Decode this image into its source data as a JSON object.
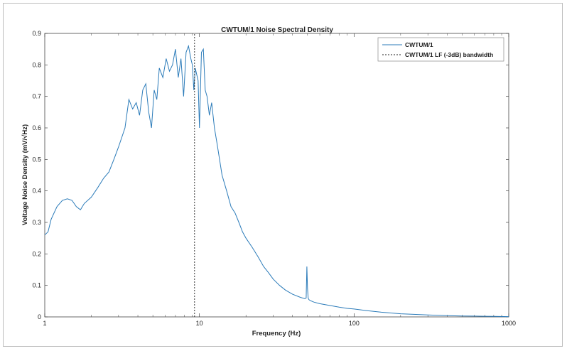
{
  "chart_data": {
    "type": "line",
    "title": "CWTUM/1 Noise Spectral Density",
    "xlabel": "Frequency (Hz)",
    "ylabel": "Voltage Noise Density (mV/√Hz)",
    "xscale": "log",
    "xlim": [
      1,
      1000
    ],
    "ylim": [
      0,
      0.9
    ],
    "xticks": [
      1,
      10,
      100,
      1000
    ],
    "xtick_labels": [
      "1",
      "10",
      "100",
      "1000"
    ],
    "yticks": [
      0,
      0.1,
      0.2,
      0.3,
      0.4,
      0.5,
      0.6,
      0.7,
      0.8,
      0.9
    ],
    "ytick_labels": [
      "0",
      "0.1",
      "0.2",
      "0.3",
      "0.4",
      "0.5",
      "0.6",
      "0.7",
      "0.8",
      "0.9"
    ],
    "grid": false,
    "legend_position": "top-right",
    "series": [
      {
        "name": "CWTUM/1",
        "style": "solid",
        "color": "#2b7bb9",
        "x": [
          1,
          1.05,
          1.1,
          1.2,
          1.3,
          1.4,
          1.5,
          1.6,
          1.7,
          1.8,
          2.0,
          2.2,
          2.4,
          2.6,
          2.8,
          3.0,
          3.3,
          3.5,
          3.7,
          3.9,
          4.1,
          4.3,
          4.5,
          4.7,
          4.9,
          5.1,
          5.3,
          5.5,
          5.8,
          6.1,
          6.4,
          6.7,
          7.0,
          7.3,
          7.6,
          7.9,
          8.2,
          8.5,
          8.8,
          9.0,
          9.2,
          9.4,
          9.6,
          9.8,
          10.0,
          10.3,
          10.6,
          10.9,
          11.2,
          11.6,
          12.0,
          12.5,
          13.0,
          13.5,
          14.0,
          15.0,
          16.0,
          17.0,
          18.0,
          19.0,
          20.0,
          22.0,
          24.0,
          26.0,
          28.0,
          30.0,
          33.0,
          36.0,
          40.0,
          45.0,
          48.0,
          49.0,
          49.5,
          50.0,
          50.5,
          51.0,
          52.0,
          55.0,
          60.0,
          70.0,
          80.0,
          90.0,
          100.0,
          120.0,
          150.0,
          200.0,
          250.0,
          300.0,
          400.0,
          500.0,
          600.0,
          700.0,
          800.0,
          1000.0
        ],
        "y": [
          0.26,
          0.27,
          0.31,
          0.35,
          0.37,
          0.375,
          0.37,
          0.35,
          0.34,
          0.36,
          0.38,
          0.41,
          0.44,
          0.46,
          0.5,
          0.54,
          0.6,
          0.69,
          0.66,
          0.68,
          0.64,
          0.72,
          0.74,
          0.65,
          0.6,
          0.72,
          0.69,
          0.79,
          0.76,
          0.82,
          0.78,
          0.8,
          0.85,
          0.76,
          0.82,
          0.7,
          0.84,
          0.86,
          0.82,
          0.8,
          0.72,
          0.79,
          0.77,
          0.75,
          0.6,
          0.84,
          0.85,
          0.72,
          0.7,
          0.64,
          0.68,
          0.6,
          0.55,
          0.5,
          0.45,
          0.4,
          0.35,
          0.33,
          0.3,
          0.27,
          0.25,
          0.22,
          0.19,
          0.16,
          0.14,
          0.12,
          0.1,
          0.085,
          0.072,
          0.062,
          0.058,
          0.06,
          0.16,
          0.09,
          0.06,
          0.055,
          0.052,
          0.047,
          0.042,
          0.036,
          0.031,
          0.027,
          0.025,
          0.02,
          0.015,
          0.01,
          0.008,
          0.006,
          0.004,
          0.003,
          0.0025,
          0.002,
          0.0015,
          0.001
        ]
      },
      {
        "name": "CWTUM/1 LF (-3dB) bandwidth",
        "style": "dashed",
        "color": "#222222",
        "x": [
          9.3,
          9.3
        ],
        "y": [
          0,
          0.9
        ]
      }
    ]
  }
}
